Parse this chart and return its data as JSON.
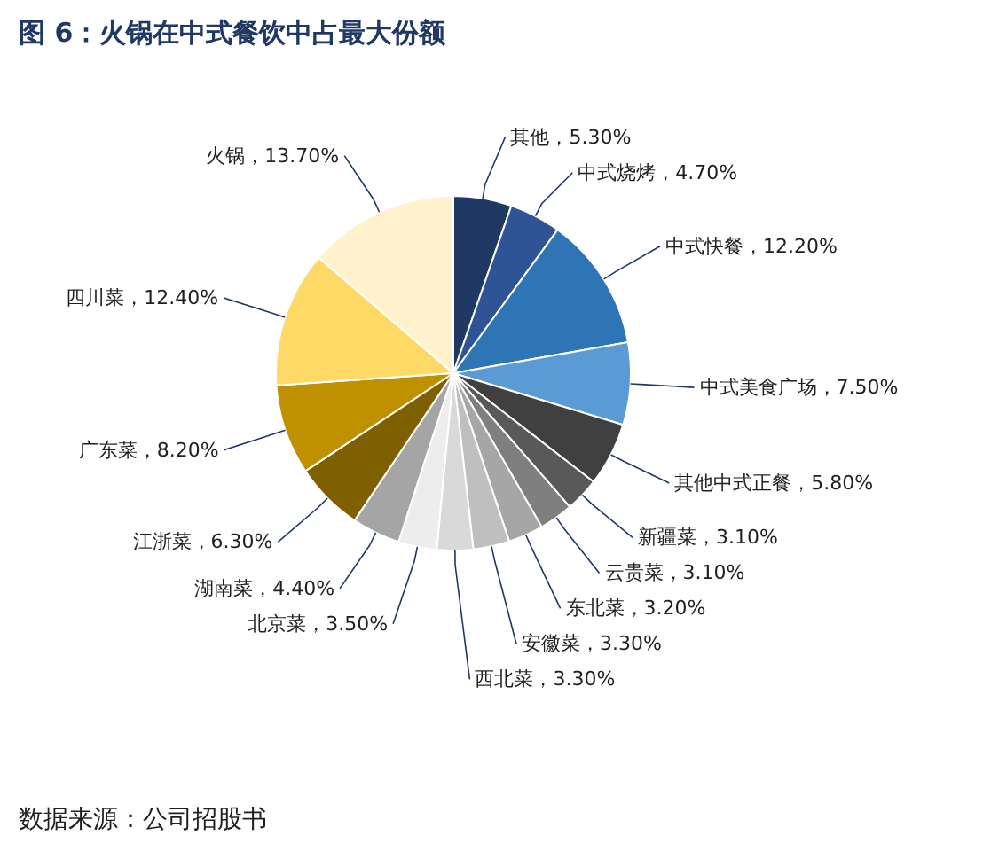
{
  "chart_data": {
    "type": "pie",
    "title": "图 6：火锅在中式餐饮中占最大份额",
    "categories": [
      "其他",
      "中式烧烤",
      "中式快餐",
      "中式美食广场",
      "其他中式正餐",
      "新疆菜",
      "云贵菜",
      "东北菜",
      "安徽菜",
      "西北菜",
      "北京菜",
      "湖南菜",
      "江浙菜",
      "广东菜",
      "四川菜",
      "火锅"
    ],
    "values": [
      5.3,
      4.7,
      12.2,
      7.5,
      5.8,
      3.1,
      3.1,
      3.2,
      3.3,
      3.3,
      3.5,
      4.4,
      6.3,
      8.2,
      12.4,
      13.7
    ],
    "value_labels": [
      "5.30%",
      "4.70%",
      "12.20%",
      "7.50%",
      "5.80%",
      "3.10%",
      "3.10%",
      "3.20%",
      "3.30%",
      "3.30%",
      "3.50%",
      "4.40%",
      "6.30%",
      "8.20%",
      "12.40%",
      "13.70%"
    ],
    "colors": [
      "#1f3864",
      "#2f5496",
      "#2e75b6",
      "#5b9bd5",
      "#404040",
      "#595959",
      "#7f7f7f",
      "#a6a6a6",
      "#bfbfbf",
      "#d9d9d9",
      "#ededed",
      "#a5a5a5",
      "#7f6000",
      "#bf9000",
      "#ffd966",
      "#fff2cc"
    ],
    "annotations": [
      "数据来源：公司招股书"
    ]
  }
}
